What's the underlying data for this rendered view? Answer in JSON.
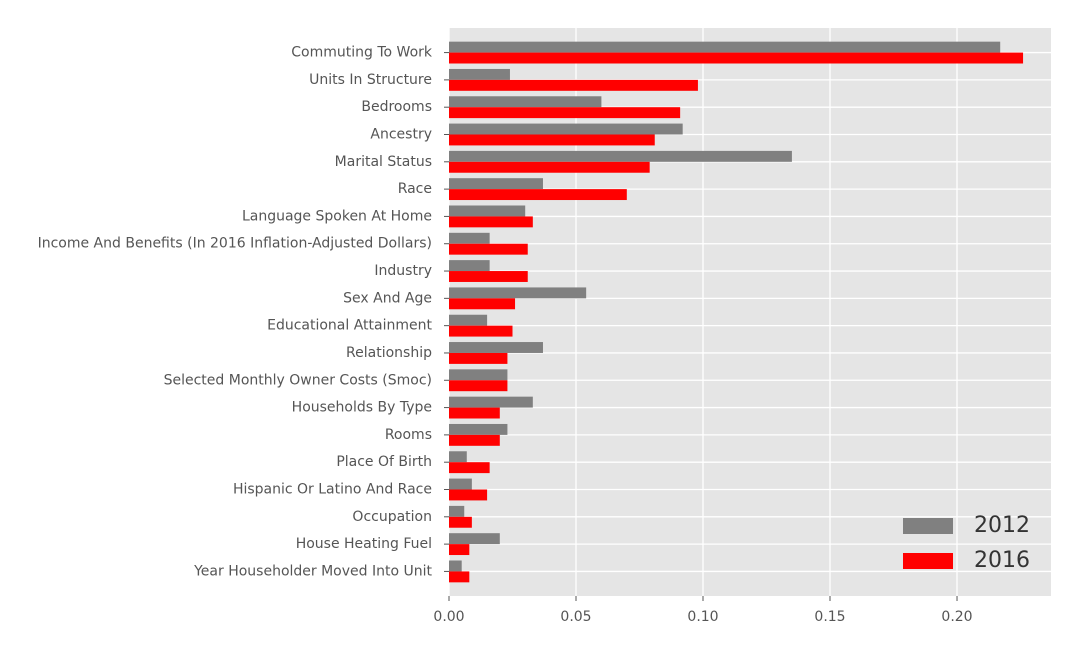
{
  "chart_data": {
    "type": "bar",
    "orientation": "horizontal",
    "categories": [
      "Commuting To Work",
      "Units In Structure",
      "Bedrooms",
      "Ancestry",
      "Marital Status",
      "Race",
      "Language Spoken At Home",
      "Income And Benefits (In 2016 Inflation-Adjusted Dollars)",
      "Industry",
      "Sex And Age",
      "Educational Attainment",
      "Relationship",
      "Selected Monthly Owner Costs (Smoc)",
      "Households By Type",
      "Rooms",
      "Place Of Birth",
      "Hispanic Or Latino And Race",
      "Occupation",
      "House Heating Fuel",
      "Year Householder Moved Into Unit"
    ],
    "series": [
      {
        "name": "2012",
        "color": "#808080",
        "values": [
          0.217,
          0.024,
          0.06,
          0.092,
          0.135,
          0.037,
          0.03,
          0.016,
          0.016,
          0.054,
          0.015,
          0.037,
          0.023,
          0.033,
          0.023,
          0.007,
          0.009,
          0.006,
          0.02,
          0.005
        ]
      },
      {
        "name": "2016",
        "color": "#ff0000",
        "values": [
          0.226,
          0.098,
          0.091,
          0.081,
          0.079,
          0.07,
          0.033,
          0.031,
          0.031,
          0.026,
          0.025,
          0.023,
          0.023,
          0.02,
          0.02,
          0.016,
          0.015,
          0.009,
          0.008,
          0.008
        ]
      }
    ],
    "xlim": [
      0,
      0.237
    ],
    "xticks": [
      "0.00",
      "0.05",
      "0.10",
      "0.15",
      "0.20"
    ],
    "xtick_values": [
      0,
      0.05,
      0.1,
      0.15,
      0.2
    ],
    "title": "",
    "xlabel": "",
    "ylabel": "",
    "grid": true,
    "legend": "bottom-right",
    "background": "#e5e5e5",
    "grid_color": "#ffffff"
  }
}
